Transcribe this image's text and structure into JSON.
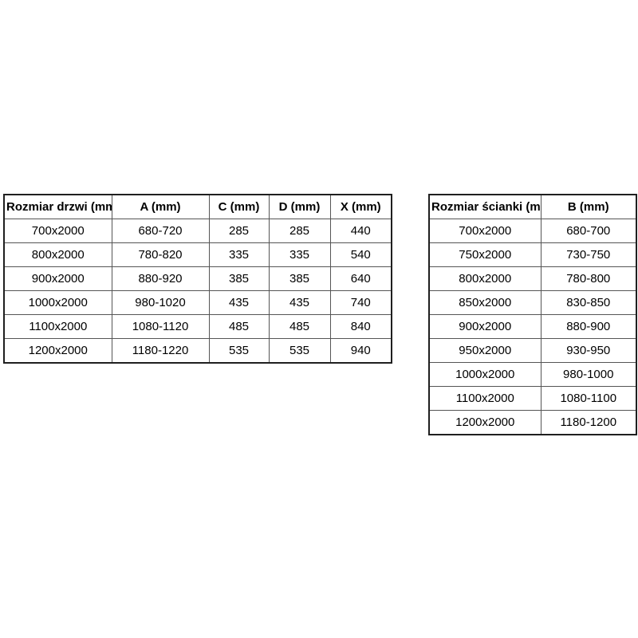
{
  "page": {
    "background": "#ffffff"
  },
  "colors": {
    "text": "#000000",
    "border_inner": "#555555",
    "border_outer": "#1f1f1f",
    "cell_background": "#ffffff"
  },
  "tables": [
    {
      "name": "door-sizes",
      "headers": [
        "Rozmiar drzwi (mm)",
        "A (mm)",
        "C (mm)",
        "D (mm)",
        "X (mm)"
      ],
      "rows": [
        [
          "700x2000",
          "680-720",
          "285",
          "285",
          "440"
        ],
        [
          "800x2000",
          "780-820",
          "335",
          "335",
          "540"
        ],
        [
          "900x2000",
          "880-920",
          "385",
          "385",
          "640"
        ],
        [
          "1000x2000",
          "980-1020",
          "435",
          "435",
          "740"
        ],
        [
          "1100x2000",
          "1080-1120",
          "485",
          "485",
          "840"
        ],
        [
          "1200x2000",
          "1180-1220",
          "535",
          "535",
          "940"
        ]
      ]
    },
    {
      "name": "wall-sizes",
      "headers": [
        "Rozmiar ścianki (mm)",
        "B (mm)"
      ],
      "rows": [
        [
          "700x2000",
          "680-700"
        ],
        [
          "750x2000",
          "730-750"
        ],
        [
          "800x2000",
          "780-800"
        ],
        [
          "850x2000",
          "830-850"
        ],
        [
          "900x2000",
          "880-900"
        ],
        [
          "950x2000",
          "930-950"
        ],
        [
          "1000x2000",
          "980-1000"
        ],
        [
          "1100x2000",
          "1080-1100"
        ],
        [
          "1200x2000",
          "1180-1200"
        ]
      ]
    }
  ],
  "chart_data": [
    {
      "type": "table",
      "title": "Rozmiar drzwi (mm)",
      "columns": [
        "Rozmiar drzwi (mm)",
        "A (mm)",
        "C (mm)",
        "D (mm)",
        "X (mm)"
      ],
      "rows": [
        [
          "700x2000",
          "680-720",
          285,
          285,
          440
        ],
        [
          "800x2000",
          "780-820",
          335,
          335,
          540
        ],
        [
          "900x2000",
          "880-920",
          385,
          385,
          640
        ],
        [
          "1000x2000",
          "980-1020",
          435,
          435,
          740
        ],
        [
          "1100x2000",
          "1080-1120",
          485,
          485,
          840
        ],
        [
          "1200x2000",
          "1180-1220",
          535,
          535,
          940
        ]
      ]
    },
    {
      "type": "table",
      "title": "Rozmiar ścianki (mm)",
      "columns": [
        "Rozmiar ścianki (mm)",
        "B (mm)"
      ],
      "rows": [
        [
          "700x2000",
          "680-700"
        ],
        [
          "750x2000",
          "730-750"
        ],
        [
          "800x2000",
          "780-800"
        ],
        [
          "850x2000",
          "830-850"
        ],
        [
          "900x2000",
          "880-900"
        ],
        [
          "950x2000",
          "930-950"
        ],
        [
          "1000x2000",
          "980-1000"
        ],
        [
          "1100x2000",
          "1080-1100"
        ],
        [
          "1200x2000",
          "1180-1200"
        ]
      ]
    }
  ]
}
